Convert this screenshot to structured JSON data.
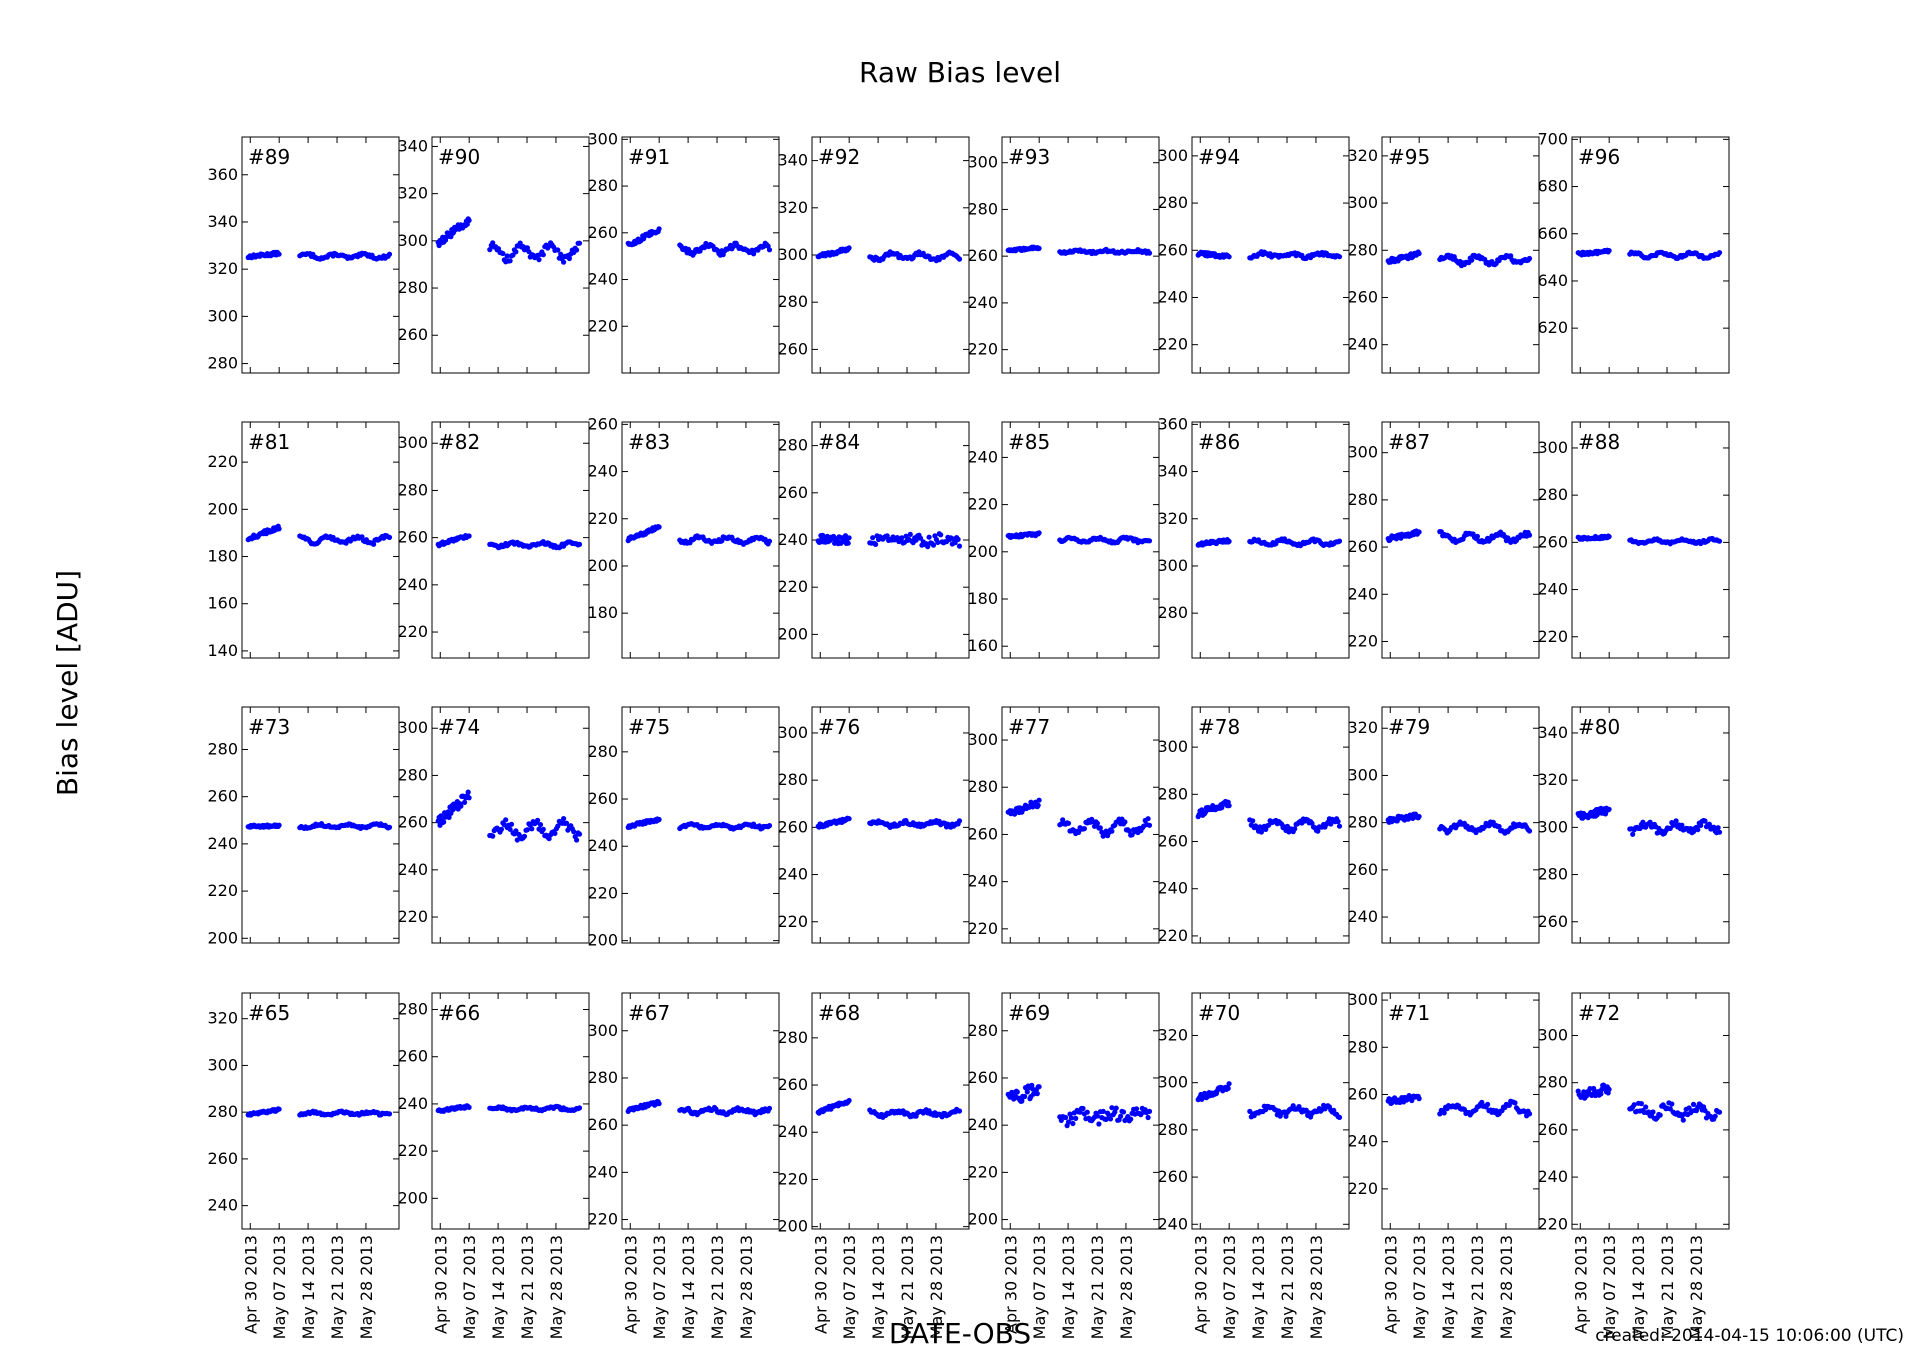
{
  "figure": {
    "title": "Raw Bias level",
    "xlabel": "DATE-OBS",
    "ylabel": "Bias level [ADU]",
    "footer": "created: 2014-04-15 10:06:00 (UTC)"
  },
  "x_ticks": [
    "Apr 30 2013",
    "May 07 2013",
    "May 14 2013",
    "May 21 2013",
    "May 28 2013"
  ],
  "colors": {
    "points": "#0000ff",
    "axes": "#000000",
    "background": "#ffffff"
  },
  "chart_data": {
    "type": "scatter",
    "layout": "4 rows x 8 columns grid of small multiples, shared date x-axis, y-axis per panel",
    "x_range": [
      "2013-04-28",
      "2013-06-05"
    ],
    "grid": false,
    "legend": "none",
    "gap": [
      "2013-05-07",
      "2013-05-12"
    ],
    "panels": [
      {
        "label": "#89",
        "ylim": [
          276,
          376
        ],
        "yticks": [
          280,
          300,
          320,
          340,
          360
        ],
        "level_a": 326,
        "trend_a": 1.5,
        "level_b": 325.5,
        "noise": 0.6,
        "wobble": 1.0
      },
      {
        "label": "#90",
        "ylim": [
          244,
          344
        ],
        "yticks": [
          260,
          280,
          300,
          320,
          340
        ],
        "level_a": 304,
        "trend_a": 10,
        "level_b": 295,
        "noise": 1.5,
        "wobble": 3.5
      },
      {
        "label": "#91",
        "ylim": [
          200,
          301
        ],
        "yticks": [
          220,
          240,
          260,
          280,
          300
        ],
        "level_a": 258,
        "trend_a": 7,
        "level_b": 253,
        "noise": 1.0,
        "wobble": 2.0
      },
      {
        "label": "#92",
        "ylim": [
          250,
          350
        ],
        "yticks": [
          260,
          280,
          300,
          320,
          340
        ],
        "level_a": 301,
        "trend_a": 3,
        "level_b": 299.5,
        "noise": 0.8,
        "wobble": 1.5
      },
      {
        "label": "#93",
        "ylim": [
          210,
          311
        ],
        "yticks": [
          220,
          240,
          260,
          280,
          300
        ],
        "level_a": 263,
        "trend_a": 1.5,
        "level_b": 262,
        "noise": 0.5,
        "wobble": 0.5
      },
      {
        "label": "#94",
        "ylim": [
          208,
          308
        ],
        "yticks": [
          220,
          240,
          260,
          280,
          300
        ],
        "level_a": 258,
        "trend_a": -1,
        "level_b": 258,
        "noise": 0.8,
        "wobble": 1.0
      },
      {
        "label": "#95",
        "ylim": [
          228,
          328
        ],
        "yticks": [
          240,
          260,
          280,
          300,
          320
        ],
        "level_a": 277,
        "trend_a": 3,
        "level_b": 276,
        "noise": 1.0,
        "wobble": 2.0
      },
      {
        "label": "#96",
        "ylim": [
          601,
          701
        ],
        "yticks": [
          620,
          640,
          660,
          680,
          700
        ],
        "level_a": 652,
        "trend_a": 1,
        "level_b": 651,
        "noise": 0.6,
        "wobble": 1.2
      },
      {
        "label": "#81",
        "ylim": [
          137,
          237
        ],
        "yticks": [
          140,
          160,
          180,
          200,
          220
        ],
        "level_a": 190,
        "trend_a": 5,
        "level_b": 187,
        "noise": 0.8,
        "wobble": 1.5
      },
      {
        "label": "#82",
        "ylim": [
          209,
          309
        ],
        "yticks": [
          220,
          240,
          260,
          280,
          300
        ],
        "level_a": 259,
        "trend_a": 4,
        "level_b": 257,
        "noise": 0.6,
        "wobble": 1.0
      },
      {
        "label": "#83",
        "ylim": [
          161,
          261
        ],
        "yticks": [
          180,
          200,
          220,
          240,
          260
        ],
        "level_a": 214,
        "trend_a": 5,
        "level_b": 211,
        "noise": 0.8,
        "wobble": 1.5
      },
      {
        "label": "#84",
        "ylim": [
          190,
          290
        ],
        "yticks": [
          200,
          220,
          240,
          260,
          280
        ],
        "level_a": 240,
        "trend_a": 0,
        "level_b": 240,
        "noise": 2.0,
        "wobble": 1.0
      },
      {
        "label": "#85",
        "ylim": [
          155,
          255
        ],
        "yticks": [
          160,
          180,
          200,
          220,
          240
        ],
        "level_a": 207,
        "trend_a": 1,
        "level_b": 205,
        "noise": 0.6,
        "wobble": 1.2
      },
      {
        "label": "#86",
        "ylim": [
          261,
          361
        ],
        "yticks": [
          280,
          300,
          320,
          340,
          360
        ],
        "level_a": 310,
        "trend_a": 1.5,
        "level_b": 310,
        "noise": 0.6,
        "wobble": 1.2
      },
      {
        "label": "#87",
        "ylim": [
          213,
          313
        ],
        "yticks": [
          220,
          240,
          260,
          280,
          300
        ],
        "level_a": 265,
        "trend_a": 3,
        "level_b": 264,
        "noise": 1.0,
        "wobble": 2.0
      },
      {
        "label": "#88",
        "ylim": [
          211,
          311
        ],
        "yticks": [
          220,
          240,
          260,
          280,
          300
        ],
        "level_a": 262,
        "trend_a": 0.5,
        "level_b": 260.5,
        "noise": 0.5,
        "wobble": 0.8
      },
      {
        "label": "#73",
        "ylim": [
          198,
          298
        ],
        "yticks": [
          200,
          220,
          240,
          260,
          280
        ],
        "level_a": 247.5,
        "trend_a": 0,
        "level_b": 247.5,
        "noise": 0.5,
        "wobble": 0.8
      },
      {
        "label": "#74",
        "ylim": [
          209,
          309
        ],
        "yticks": [
          220,
          240,
          260,
          280,
          300
        ],
        "level_a": 266,
        "trend_a": 12,
        "level_b": 257,
        "noise": 2.0,
        "wobble": 3.5
      },
      {
        "label": "#75",
        "ylim": [
          199,
          299
        ],
        "yticks": [
          200,
          220,
          240,
          260,
          280
        ],
        "level_a": 250,
        "trend_a": 3,
        "level_b": 248.5,
        "noise": 0.6,
        "wobble": 0.8
      },
      {
        "label": "#76",
        "ylim": [
          211,
          311
        ],
        "yticks": [
          220,
          240,
          260,
          280,
          300
        ],
        "level_a": 262,
        "trend_a": 3,
        "level_b": 261.5,
        "noise": 0.8,
        "wobble": 1.0
      },
      {
        "label": "#77",
        "ylim": [
          214,
          314
        ],
        "yticks": [
          220,
          240,
          260,
          280,
          300
        ],
        "level_a": 271,
        "trend_a": 5,
        "level_b": 263,
        "noise": 1.5,
        "wobble": 3.0
      },
      {
        "label": "#78",
        "ylim": [
          217,
          317
        ],
        "yticks": [
          220,
          240,
          260,
          280,
          300
        ],
        "level_a": 274,
        "trend_a": 5,
        "level_b": 267,
        "noise": 1.5,
        "wobble": 2.5
      },
      {
        "label": "#79",
        "ylim": [
          229,
          329
        ],
        "yticks": [
          240,
          260,
          280,
          300,
          320
        ],
        "level_a": 282,
        "trend_a": 2,
        "level_b": 278,
        "noise": 1.0,
        "wobble": 2.0
      },
      {
        "label": "#80",
        "ylim": [
          251,
          351
        ],
        "yticks": [
          260,
          280,
          300,
          320,
          340
        ],
        "level_a": 306,
        "trend_a": 3,
        "level_b": 300,
        "noise": 1.5,
        "wobble": 2.0
      },
      {
        "label": "#65",
        "ylim": [
          230,
          331
        ],
        "yticks": [
          240,
          260,
          280,
          300,
          320
        ],
        "level_a": 280,
        "trend_a": 2,
        "level_b": 279.5,
        "noise": 0.5,
        "wobble": 0.6
      },
      {
        "label": "#66",
        "ylim": [
          187,
          287
        ],
        "yticks": [
          200,
          220,
          240,
          260,
          280
        ],
        "level_a": 238,
        "trend_a": 2,
        "level_b": 238,
        "noise": 0.5,
        "wobble": 0.6
      },
      {
        "label": "#67",
        "ylim": [
          216,
          316
        ],
        "yticks": [
          220,
          240,
          260,
          280,
          300
        ],
        "level_a": 268,
        "trend_a": 3,
        "level_b": 266,
        "noise": 0.8,
        "wobble": 1.0
      },
      {
        "label": "#68",
        "ylim": [
          199,
          299
        ],
        "yticks": [
          200,
          220,
          240,
          260,
          280
        ],
        "level_a": 251,
        "trend_a": 5,
        "level_b": 248,
        "noise": 0.8,
        "wobble": 1.2
      },
      {
        "label": "#69",
        "ylim": [
          196,
          296
        ],
        "yticks": [
          200,
          220,
          240,
          260,
          280
        ],
        "level_a": 253,
        "trend_a": 4,
        "level_b": 244,
        "noise": 3.0,
        "wobble": 2.0
      },
      {
        "label": "#70",
        "ylim": [
          238,
          338
        ],
        "yticks": [
          240,
          260,
          280,
          300,
          320
        ],
        "level_a": 296,
        "trend_a": 5,
        "level_b": 288,
        "noise": 1.2,
        "wobble": 2.0
      },
      {
        "label": "#71",
        "ylim": [
          203,
          303
        ],
        "yticks": [
          220,
          240,
          260,
          280,
          300
        ],
        "level_a": 258,
        "trend_a": 2,
        "level_b": 254,
        "noise": 1.2,
        "wobble": 2.5
      },
      {
        "label": "#72",
        "ylim": [
          218,
          318
        ],
        "yticks": [
          220,
          240,
          260,
          280,
          300
        ],
        "level_a": 276,
        "trend_a": 3,
        "level_b": 268,
        "noise": 2.0,
        "wobble": 2.5
      }
    ]
  }
}
